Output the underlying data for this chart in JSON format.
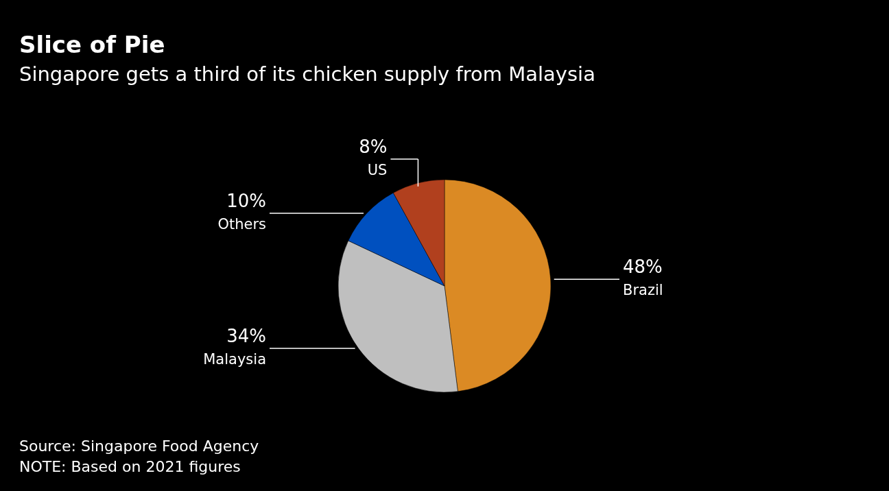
{
  "chart_data": {
    "type": "pie",
    "title": "Slice of Pie",
    "subtitle": "Singapore gets a third of its chicken supply from Malaysia",
    "categories": [
      "Brazil",
      "Malaysia",
      "Others",
      "US"
    ],
    "values": [
      48,
      34,
      10,
      8
    ],
    "value_labels": [
      "48%",
      "34%",
      "10%",
      "8%"
    ],
    "colors": [
      "#db8a24",
      "#bfbfbf",
      "#0050bf",
      "#b1401e"
    ],
    "annotations": [
      "Source: Singapore Food Agency",
      "NOTE: Based on 2021 figures"
    ]
  }
}
